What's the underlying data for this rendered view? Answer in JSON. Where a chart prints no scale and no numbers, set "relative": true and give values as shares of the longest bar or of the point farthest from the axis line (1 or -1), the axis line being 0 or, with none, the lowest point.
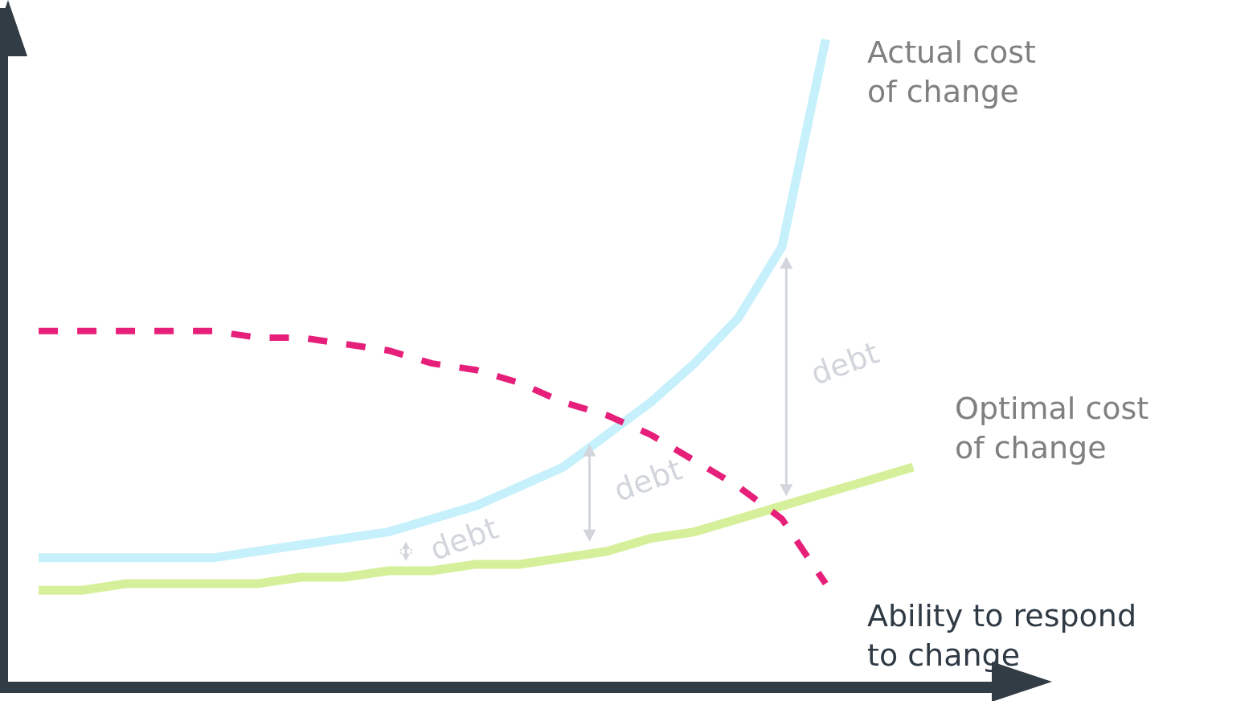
{
  "chart_data": {
    "type": "line",
    "relative": true,
    "marker": "none",
    "categories": [
      null,
      null,
      null,
      null,
      null,
      null,
      null,
      null,
      null,
      null,
      null,
      null,
      null,
      null,
      null,
      null,
      null,
      null,
      null,
      null,
      null
    ],
    "series": [
      {
        "name": "Actual cost\nof change",
        "color": "#c6f0fb",
        "line_style": "solid",
        "values": [
          0.2,
          0.2,
          0.2,
          0.2,
          0.2,
          0.21,
          0.22,
          0.23,
          0.24,
          0.26,
          0.28,
          0.31,
          0.34,
          0.39,
          0.44,
          0.5,
          0.57,
          0.68,
          1.0,
          null,
          null
        ]
      },
      {
        "name": "Optimal cost\nof change",
        "color": "#d6ef9a",
        "line_style": "solid",
        "values": [
          0.15,
          0.15,
          0.16,
          0.16,
          0.16,
          0.16,
          0.17,
          0.17,
          0.18,
          0.18,
          0.19,
          0.19,
          0.2,
          0.21,
          0.23,
          0.24,
          0.26,
          0.28,
          0.3,
          0.32,
          0.34
        ]
      },
      {
        "name": "Ability to respond\nto change",
        "color": "#e6207a",
        "line_style": "dashed",
        "values": [
          0.55,
          0.55,
          0.55,
          0.55,
          0.55,
          0.54,
          0.54,
          0.53,
          0.52,
          0.5,
          0.49,
          0.47,
          0.44,
          0.42,
          0.39,
          0.35,
          0.31,
          0.26,
          0.16,
          null,
          null
        ]
      }
    ],
    "annotations": [
      "debt",
      "debt",
      "debt"
    ]
  }
}
